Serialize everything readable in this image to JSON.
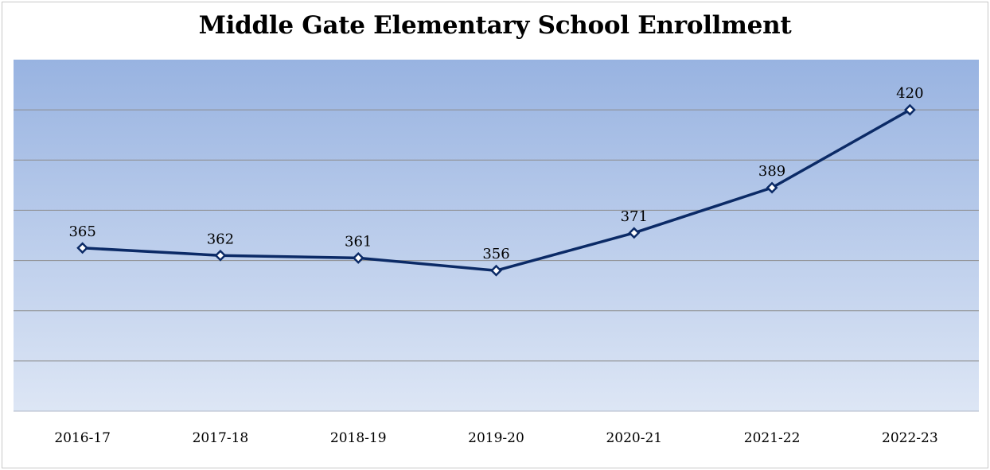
{
  "chart_data": {
    "type": "line",
    "title": "Middle Gate Elementary School Enrollment",
    "xlabel": "",
    "ylabel": "",
    "categories": [
      "2016-17",
      "2017-18",
      "2018-19",
      "2019-20",
      "2020-21",
      "2021-22",
      "2022-23"
    ],
    "series": [
      {
        "values": [
          365,
          362,
          361,
          356,
          371,
          389,
          420
        ]
      }
    ],
    "ylim": [
      300,
      440
    ],
    "y_gridline_step": 20,
    "y_tick_labels_shown": false,
    "data_labels_shown": true,
    "grid": true,
    "legend": "none",
    "colors": {
      "line": "#0b2a66",
      "plot_gradient_top": "#98b3e1",
      "plot_gradient_bottom": "#dde6f5",
      "gridline": "#8c8c8c"
    }
  }
}
